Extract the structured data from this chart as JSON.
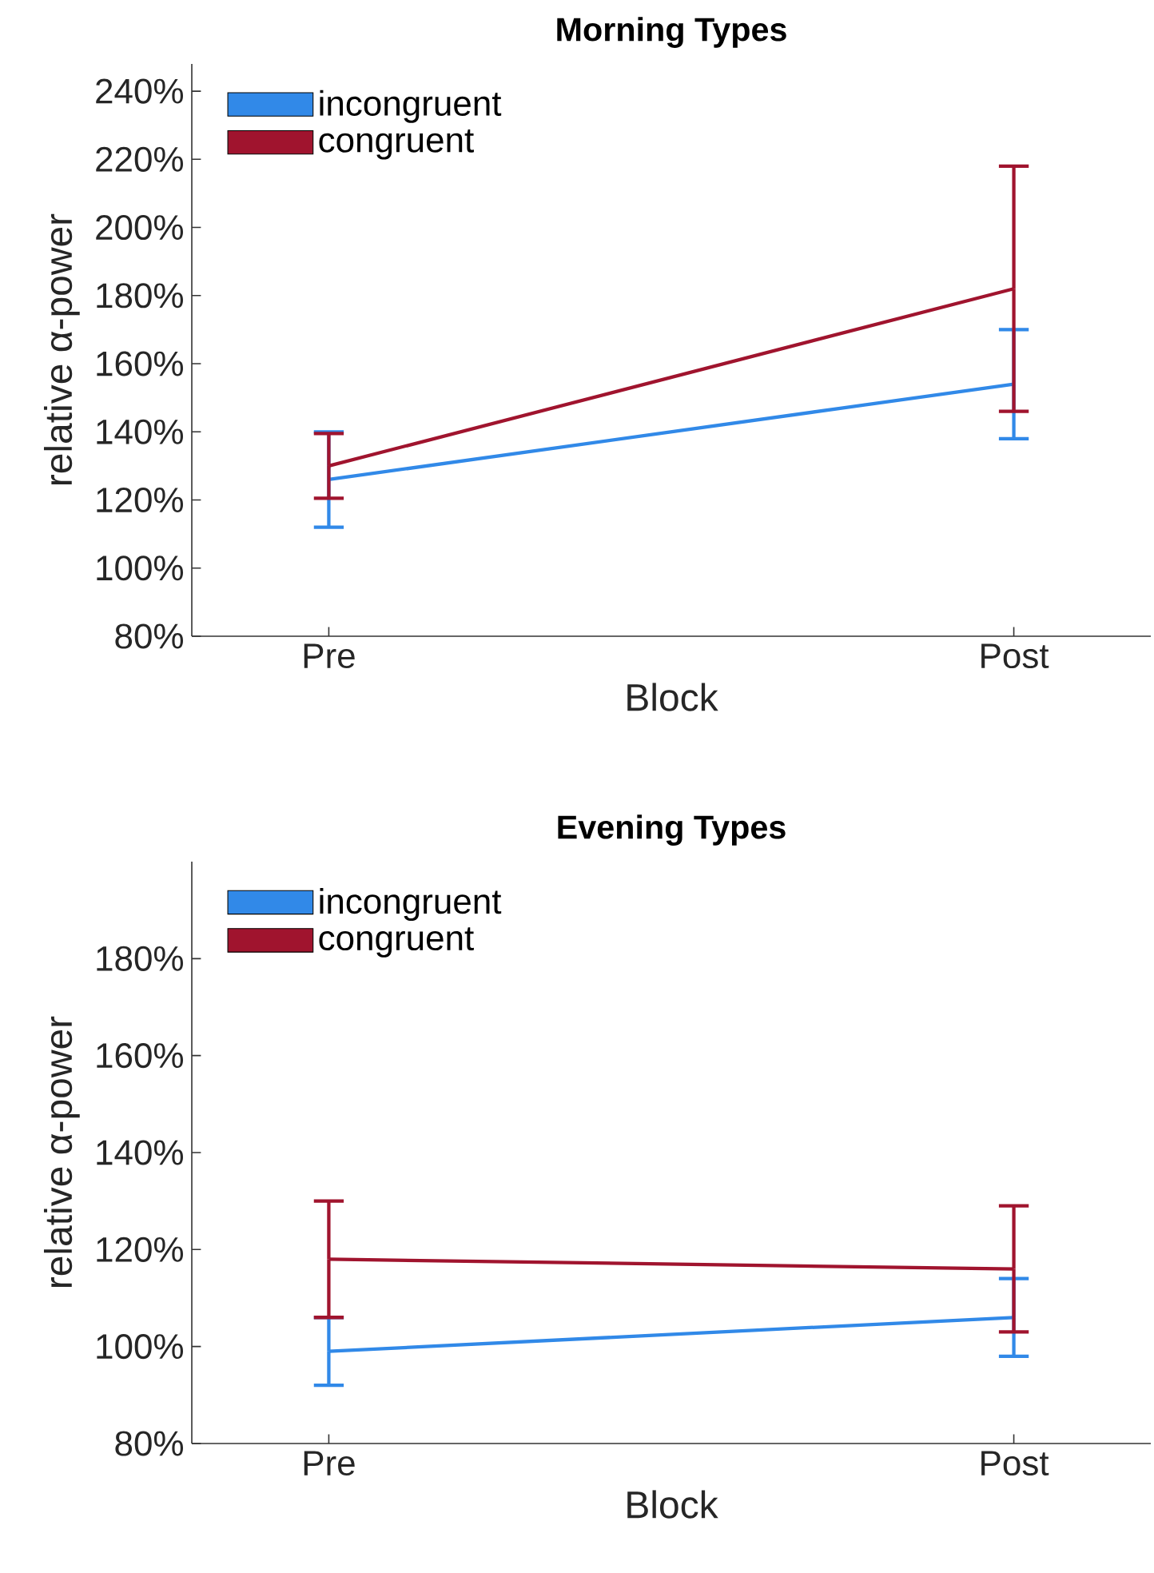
{
  "chart_data": [
    {
      "type": "line",
      "title": "Morning Types",
      "xlabel": "Block",
      "ylabel": "relative α-power",
      "categories": [
        "Pre",
        "Post"
      ],
      "legend": "top left",
      "ylim": [
        80,
        248
      ],
      "yticks": [
        {
          "value": 80,
          "label": "80%"
        },
        {
          "value": 100,
          "label": "100%"
        },
        {
          "value": 120,
          "label": "120%"
        },
        {
          "value": 140,
          "label": "140%"
        },
        {
          "value": 160,
          "label": "160%"
        },
        {
          "value": 180,
          "label": "180%"
        },
        {
          "value": 200,
          "label": "200%"
        },
        {
          "value": 220,
          "label": "220%"
        },
        {
          "value": 240,
          "label": "240%"
        }
      ],
      "series": [
        {
          "name": "incongruent",
          "color": "#3189e8",
          "values": [
            126,
            154
          ],
          "errors": [
            14,
            16
          ]
        },
        {
          "name": "congruent",
          "color": "#a0142e",
          "values": [
            130,
            182
          ],
          "errors": [
            9.5,
            36
          ]
        }
      ]
    },
    {
      "type": "line",
      "title": "Evening Types",
      "xlabel": "Block",
      "ylabel": "relative α-power",
      "categories": [
        "Pre",
        "Post"
      ],
      "legend": "top left",
      "ylim": [
        80,
        200
      ],
      "yticks": [
        {
          "value": 80,
          "label": "80%"
        },
        {
          "value": 100,
          "label": "100%"
        },
        {
          "value": 120,
          "label": "120%"
        },
        {
          "value": 140,
          "label": "140%"
        },
        {
          "value": 160,
          "label": "160%"
        },
        {
          "value": 180,
          "label": "180%"
        }
      ],
      "series": [
        {
          "name": "incongruent",
          "color": "#3189e8",
          "values": [
            99,
            106
          ],
          "errors": [
            7,
            8
          ]
        },
        {
          "name": "congruent",
          "color": "#a0142e",
          "values": [
            118,
            116
          ],
          "errors": [
            12,
            13
          ]
        }
      ]
    }
  ]
}
